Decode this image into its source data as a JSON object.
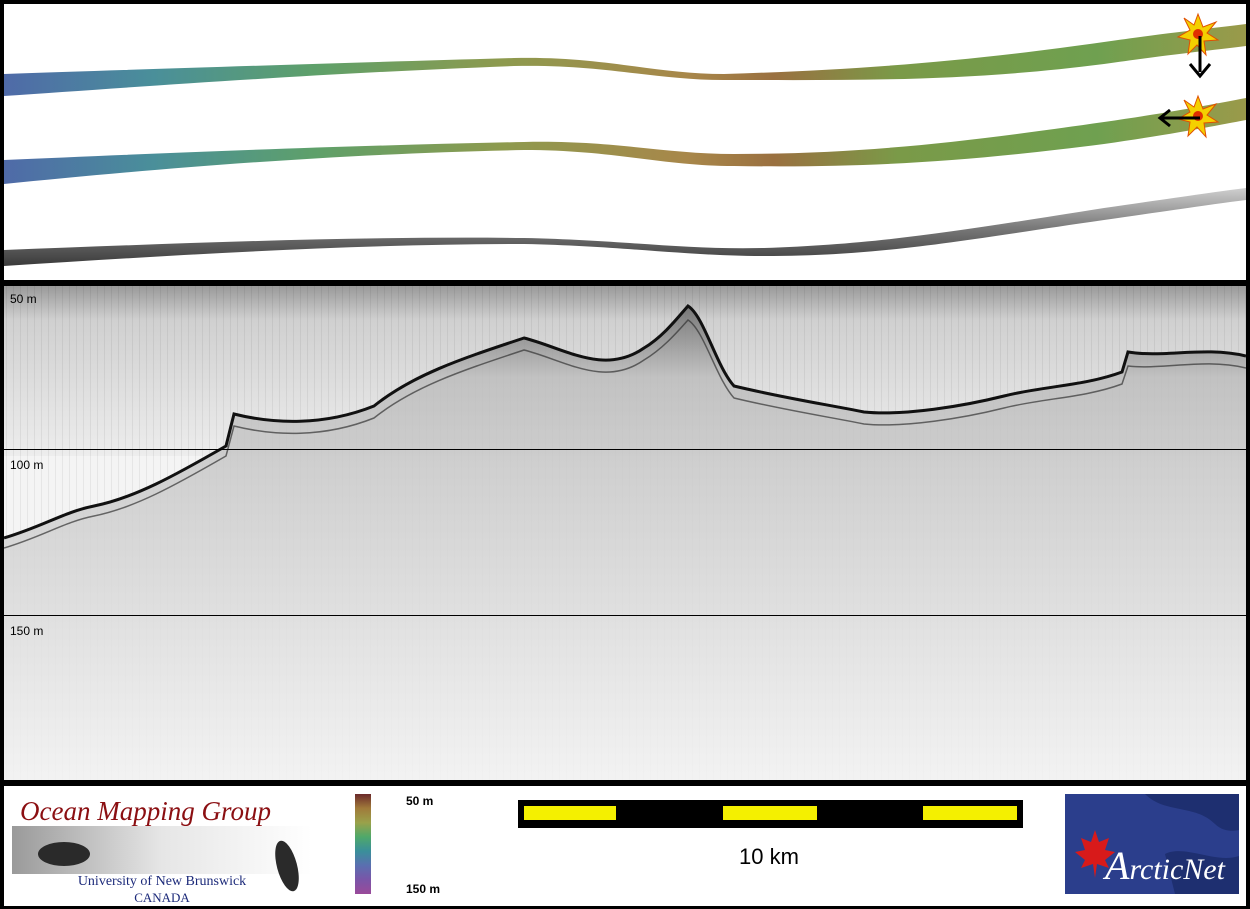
{
  "depth_labels": {
    "d50": "50 m",
    "d100": "100 m",
    "d150": "150 m"
  },
  "logos": {
    "ocean_mapping": {
      "title": "Ocean Mapping Group",
      "university": "University of New Brunswick",
      "country": "CANADA"
    },
    "arcticnet": {
      "letter": "A",
      "text": "rcticNet"
    }
  },
  "colorbar": {
    "top_label": "50 m",
    "bottom_label": "150 m"
  },
  "scale_bar": {
    "label": "10 km",
    "segments": 5
  },
  "colors": {
    "scale_segment": "#f4f000",
    "omg_title": "#8b0f12",
    "arcticnet_bg": "#2b3e8c",
    "marker": "#f4d000"
  },
  "icons": [
    "burst-marker-icon",
    "arrow-down-icon",
    "arrow-left-icon",
    "maple-leaf-icon"
  ]
}
